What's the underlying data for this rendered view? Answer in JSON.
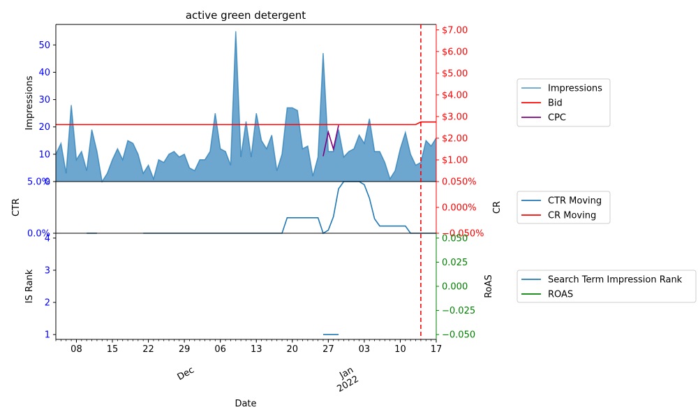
{
  "chart_data": {
    "type": "line",
    "title": "active green detergent",
    "xlabel": "Date",
    "x_start": "2021-11-04",
    "x_end": "2022-01-17",
    "x_major_ticks": [
      {
        "date": "2021-11-08",
        "label": "08"
      },
      {
        "date": "2021-11-15",
        "label": "15"
      },
      {
        "date": "2021-11-22",
        "label": "22"
      },
      {
        "date": "2021-11-29",
        "label": "29"
      },
      {
        "date": "2021-12-06",
        "label": "06"
      },
      {
        "date": "2021-12-13",
        "label": "13"
      },
      {
        "date": "2021-12-20",
        "label": "20"
      },
      {
        "date": "2021-12-27",
        "label": "27"
      },
      {
        "date": "2022-01-03",
        "label": "03"
      },
      {
        "date": "2022-01-10",
        "label": "10"
      },
      {
        "date": "2022-01-17",
        "label": "17"
      }
    ],
    "x_month_labels": [
      {
        "date": "2021-12-01",
        "label": "Dec"
      },
      {
        "date": "2022-01-01",
        "label": "Jan\n2022"
      }
    ],
    "event_line_date": "2022-01-14",
    "panels": [
      {
        "name": "impressions",
        "ylabel_left": "Impressions",
        "ylim_left": [
          0,
          57.5
        ],
        "yticks_left": [
          0,
          10,
          20,
          30,
          40,
          50
        ],
        "ylim_right": [
          0,
          7.25
        ],
        "yticks_right": [
          {
            "value": 1,
            "label": "$1.00"
          },
          {
            "value": 2,
            "label": "$2.00"
          },
          {
            "value": 3,
            "label": "$3.00"
          },
          {
            "value": 4,
            "label": "$4.00"
          },
          {
            "value": 5,
            "label": "$5.00"
          },
          {
            "value": 6,
            "label": "$6.00"
          },
          {
            "value": 7,
            "label": "$7.00"
          }
        ],
        "series": [
          {
            "name": "Impressions",
            "axis": "left",
            "color": "#1f77b4",
            "style": "area",
            "dates": [
              "2021-11-04",
              "2021-11-05",
              "2021-11-06",
              "2021-11-07",
              "2021-11-08",
              "2021-11-09",
              "2021-11-10",
              "2021-11-11",
              "2021-11-12",
              "2021-11-13",
              "2021-11-14",
              "2021-11-15",
              "2021-11-16",
              "2021-11-17",
              "2021-11-18",
              "2021-11-19",
              "2021-11-20",
              "2021-11-21",
              "2021-11-22",
              "2021-11-23",
              "2021-11-24",
              "2021-11-25",
              "2021-11-26",
              "2021-11-27",
              "2021-11-28",
              "2021-11-29",
              "2021-11-30",
              "2021-12-01",
              "2021-12-02",
              "2021-12-03",
              "2021-12-04",
              "2021-12-05",
              "2021-12-06",
              "2021-12-07",
              "2021-12-08",
              "2021-12-09",
              "2021-12-10",
              "2021-12-11",
              "2021-12-12",
              "2021-12-13",
              "2021-12-14",
              "2021-12-15",
              "2021-12-16",
              "2021-12-17",
              "2021-12-18",
              "2021-12-19",
              "2021-12-20",
              "2021-12-21",
              "2021-12-22",
              "2021-12-23",
              "2021-12-24",
              "2021-12-25",
              "2021-12-26",
              "2021-12-27",
              "2021-12-28",
              "2021-12-29",
              "2021-12-30",
              "2021-12-31",
              "2022-01-01",
              "2022-01-02",
              "2022-01-03",
              "2022-01-04",
              "2022-01-05",
              "2022-01-06",
              "2022-01-07",
              "2022-01-08",
              "2022-01-09",
              "2022-01-10",
              "2022-01-11",
              "2022-01-12",
              "2022-01-13",
              "2022-01-14",
              "2022-01-15",
              "2022-01-16",
              "2022-01-17"
            ],
            "values": [
              10,
              14,
              3,
              28,
              8,
              11,
              4,
              19,
              11,
              0,
              3,
              8,
              12,
              8,
              15,
              14,
              10,
              3,
              6,
              1,
              8,
              7,
              10,
              11,
              9,
              10,
              5,
              4,
              8,
              8,
              11,
              25,
              12,
              11,
              6,
              55,
              9,
              22,
              9,
              25,
              15,
              12,
              17,
              4,
              10,
              27,
              27,
              26,
              12,
              13,
              2,
              9,
              47,
              11,
              11,
              19,
              9,
              11,
              12,
              17,
              14,
              23,
              11,
              11,
              7,
              1,
              4,
              12,
              18,
              10,
              6,
              7,
              15,
              13,
              16
            ]
          },
          {
            "name": "Bid",
            "axis": "right",
            "color": "#ff0000",
            "style": "line",
            "dates": [
              "2021-11-04",
              "2022-01-13",
              "2022-01-14",
              "2022-01-17"
            ],
            "values": [
              2.63,
              2.63,
              2.75,
              2.75
            ]
          },
          {
            "name": "CPC",
            "axis": "right",
            "color": "#800080",
            "style": "line",
            "dates": [
              "2021-12-26",
              "2021-12-27",
              "2021-12-28",
              "2021-12-29"
            ],
            "values": [
              1.17,
              2.28,
              1.5,
              2.6
            ]
          }
        ],
        "legend": [
          "Impressions",
          "Bid",
          "CPC"
        ]
      },
      {
        "name": "ctr",
        "ylabel_left": "CTR",
        "ylabel_right": "CR",
        "ylim_left": [
          0,
          0.05
        ],
        "yticks_left": [
          {
            "value": 0,
            "label": "0.0%"
          },
          {
            "value": 0.05,
            "label": "5.0%"
          }
        ],
        "ylim_right": [
          -0.05,
          0.05
        ],
        "yticks_right": [
          {
            "value": -0.05,
            "label": "−0.050%"
          },
          {
            "value": 0,
            "label": "0.000%"
          },
          {
            "value": 0.05,
            "label": "0.050%"
          }
        ],
        "series": [
          {
            "name": "CTR Moving",
            "axis": "left",
            "color": "#1f77b4",
            "style": "line",
            "segments": [
              {
                "dates": [
                  "2021-11-10",
                  "2021-11-12"
                ],
                "values": [
                  0,
                  0
                ]
              },
              {
                "dates": [
                  "2021-11-21",
                  "2021-12-08",
                  "2021-12-18",
                  "2021-12-19",
                  "2021-12-24",
                  "2021-12-25",
                  "2021-12-26",
                  "2021-12-27",
                  "2021-12-28",
                  "2021-12-29",
                  "2021-12-30",
                  "2021-12-31",
                  "2022-01-01",
                  "2022-01-02",
                  "2022-01-03",
                  "2022-01-04",
                  "2022-01-05",
                  "2022-01-06",
                  "2022-01-07",
                  "2022-01-11",
                  "2022-01-12",
                  "2022-01-17"
                ],
                "values": [
                  0,
                  0,
                  0,
                  0.015,
                  0.015,
                  0.015,
                  0,
                  0.003,
                  0.016,
                  0.043,
                  0.05,
                  0.05,
                  0.05,
                  0.05,
                  0.047,
                  0.034,
                  0.014,
                  0.007,
                  0.007,
                  0.007,
                  0,
                  0
                ]
              }
            ]
          }
        ],
        "legend": [
          "CTR Moving",
          "CR Moving"
        ],
        "legend_colors": [
          "#1f77b4",
          "#ff0000"
        ]
      },
      {
        "name": "rank",
        "ylabel_left": "IS Rank",
        "ylabel_right": "RoAS",
        "ylim_left": [
          0.85,
          4.15
        ],
        "yticks_left": [
          1,
          2,
          3,
          4
        ],
        "ylim_right": [
          -0.055,
          0.055
        ],
        "yticks_right": [
          {
            "value": -0.05,
            "label": "−0.050"
          },
          {
            "value": -0.025,
            "label": "−0.025"
          },
          {
            "value": 0,
            "label": "0.000"
          },
          {
            "value": 0.025,
            "label": "0.025"
          },
          {
            "value": 0.05,
            "label": "0.050"
          }
        ],
        "series": [
          {
            "name": "Search Term Impression Rank",
            "axis": "left",
            "color": "#1f77b4",
            "style": "line",
            "segments": [
              {
                "dates": [
                  "2021-12-26",
                  "2021-12-29"
                ],
                "values": [
                  1,
                  1
                ]
              }
            ]
          }
        ],
        "legend": [
          "Search Term Impression Rank",
          "ROAS"
        ],
        "legend_colors": [
          "#1f77b4",
          "#008000"
        ]
      }
    ],
    "colors": {
      "left_axis": "#0000ff",
      "impressions_right_axis": "#ff0000",
      "ctr_right_axis": "#ff0000",
      "rank_right_axis": "#008000",
      "event_line": "#ff0000"
    }
  }
}
